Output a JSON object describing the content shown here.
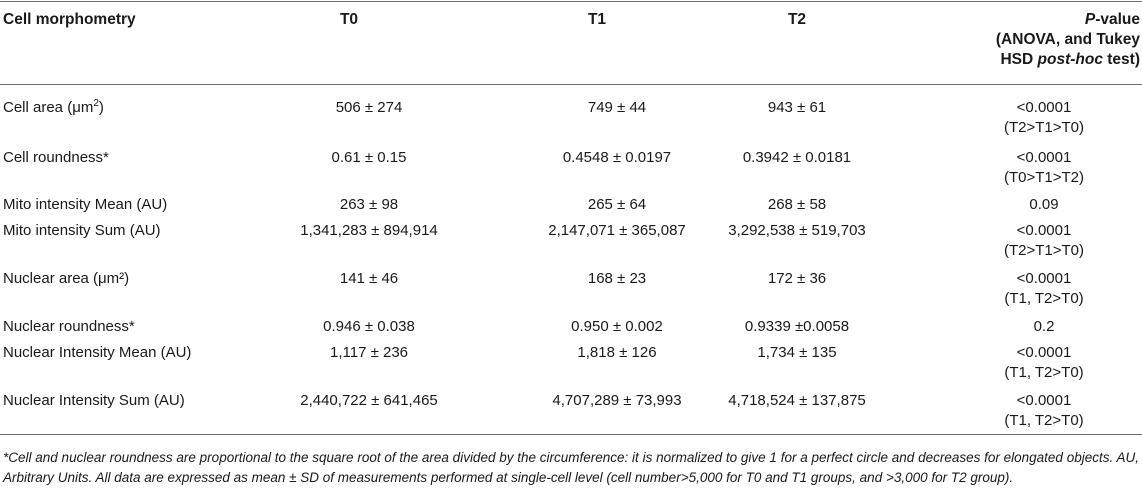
{
  "header": {
    "col0": "Cell morphometry",
    "col1": "T0",
    "col2": "T1",
    "col3": "T2",
    "pvalue_line1_prefix": "P",
    "pvalue_line1_suffix": "-value",
    "pvalue_line2": "(ANOVA, and Tukey",
    "pvalue_line3_prefix": "HSD ",
    "pvalue_line3_italic": "post-hoc",
    "pvalue_line3_suffix": " test)"
  },
  "rows": [
    {
      "label": "Cell area (μm",
      "label_sup": "2",
      "label_tail": ")",
      "t0": "506 ± 274",
      "t1": "749 ± 44",
      "t2": "943 ± 61",
      "p": "<0.0001",
      "p_note": "(T2>T1>T0)"
    },
    {
      "label": "Cell roundness*",
      "t0": "0.61 ± 0.15",
      "t1": "0.4548 ± 0.0197",
      "t2": "0.3942 ± 0.0181",
      "p": "<0.0001",
      "p_note": "(T0>T1>T2)"
    },
    {
      "label": "Mito intensity Mean (AU)",
      "t0": "263 ± 98",
      "t1": "265 ± 64",
      "t2": "268 ± 58",
      "p": "0.09",
      "p_note": ""
    },
    {
      "label": "Mito intensity Sum (AU)",
      "t0": "1,341,283 ± 894,914",
      "t1": "2,147,071 ± 365,087",
      "t2": "3,292,538 ± 519,703",
      "p": "<0.0001",
      "p_note": "(T2>T1>T0)"
    },
    {
      "label": "Nuclear area (μm²)",
      "t0": "141 ± 46",
      "t1": "168 ± 23",
      "t2": "172 ± 36",
      "p": "<0.0001",
      "p_note": "(T1, T2>T0)"
    },
    {
      "label": "Nuclear roundness*",
      "t0": "0.946 ± 0.038",
      "t1": "0.950 ± 0.002",
      "t2": "0.9339 ±0.0058",
      "p": "0.2",
      "p_note": ""
    },
    {
      "label": "Nuclear Intensity Mean (AU)",
      "t0": "1,117 ± 236",
      "t1": "1,818 ± 126",
      "t2": "1,734 ± 135",
      "p": "<0.0001",
      "p_note": "(T1, T2>T0)"
    },
    {
      "label": "Nuclear Intensity Sum (AU)",
      "t0": "2,440,722 ± 641,465",
      "t1": "4,707,289 ± 73,993",
      "t2": "4,718,524 ± 137,875",
      "p": "<0.0001",
      "p_note": "(T1, T2>T0)"
    }
  ],
  "footnote": "*Cell and nuclear roundness are proportional to the square root of the area divided by the circumference: it is normalized to give 1 for a perfect circle and decreases for elongated objects. AU, Arbitrary Units. All data are expressed as mean ± SD of measurements performed at single-cell level (cell number>5,000 for T0 and T1 groups, and >3,000 for T2 group)."
}
